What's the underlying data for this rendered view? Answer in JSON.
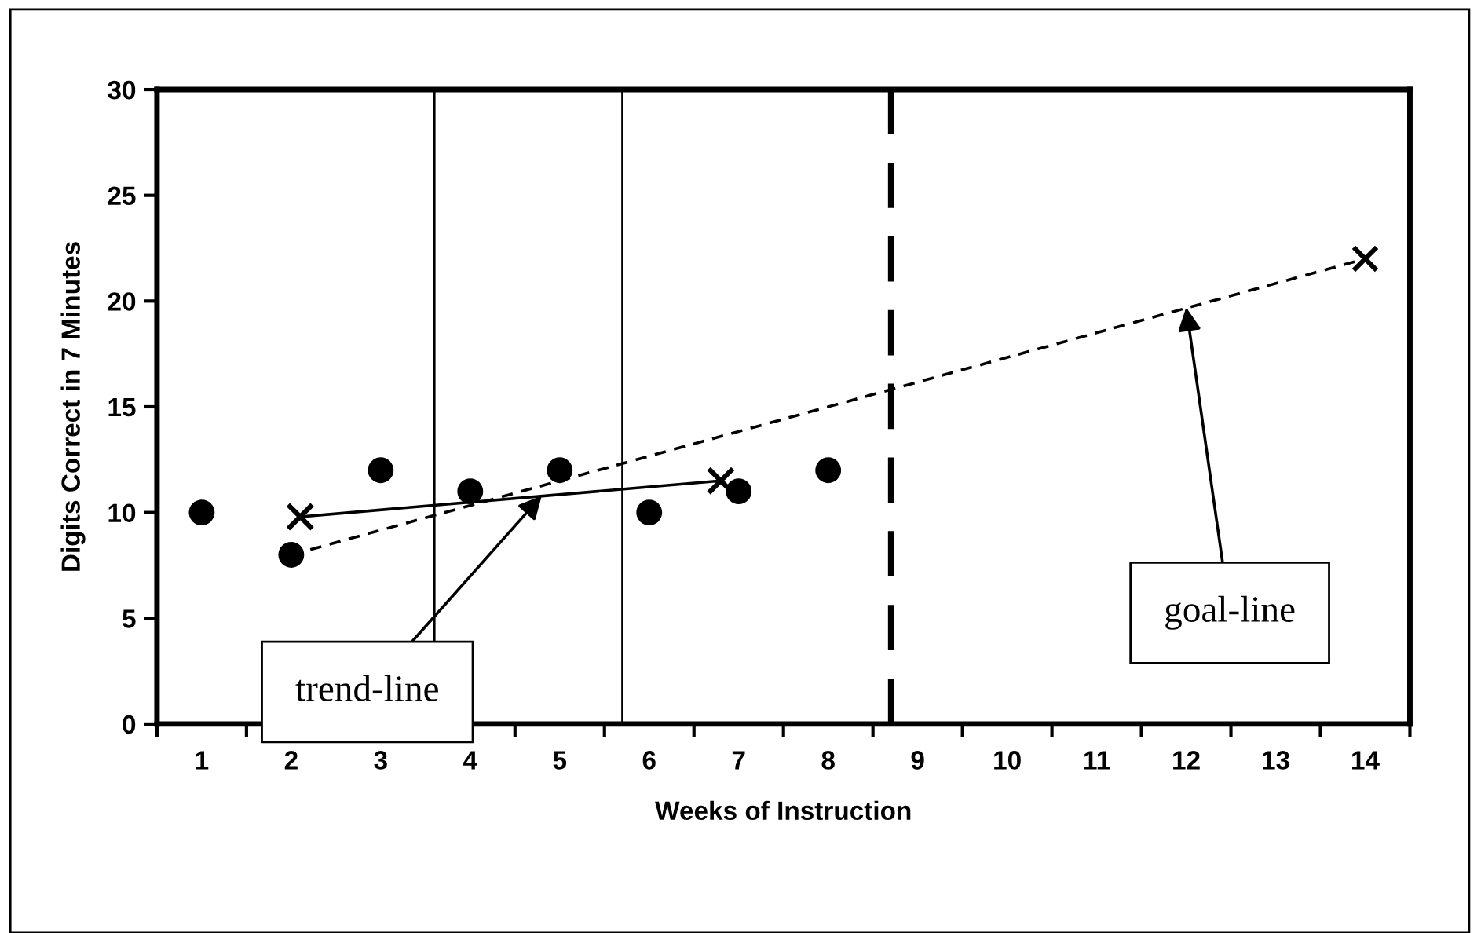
{
  "chart_data": {
    "type": "scatter",
    "xlabel": "Weeks of Instruction",
    "ylabel": "Digits Correct in 7 Minutes",
    "x": [
      1,
      2,
      3,
      4,
      5,
      6,
      7,
      8
    ],
    "xlim": [
      0.5,
      14.5
    ],
    "xticks": [
      1,
      2,
      3,
      4,
      5,
      6,
      7,
      8,
      9,
      10,
      11,
      12,
      13,
      14
    ],
    "ylim": [
      0,
      30
    ],
    "yticks": [
      0,
      5,
      10,
      15,
      20,
      25,
      30
    ],
    "grid": false,
    "legend": false,
    "series": [
      {
        "color": "#000000",
        "marker": "circle",
        "values": [
          10,
          8,
          12,
          11,
          12,
          10,
          11,
          12
        ]
      },
      {
        "type": "line",
        "color": "#000000",
        "line_style": "solid",
        "marker": "cross",
        "x": [
          2.1,
          6.8
        ],
        "values": [
          9.8,
          11.5
        ]
      },
      {
        "type": "line",
        "color": "#000000",
        "line_style": "dashed",
        "marker": "none",
        "x": [
          2,
          14
        ],
        "values": [
          8,
          22
        ]
      },
      {
        "type": "scatter",
        "color": "#000000",
        "marker": "cross",
        "x": [
          14
        ],
        "values": [
          22
        ]
      }
    ],
    "ref_lines": [
      {
        "axis": "x",
        "value": 3.6,
        "color": "#000000",
        "line_style": "solid"
      },
      {
        "axis": "x",
        "value": 5.7,
        "color": "#000000",
        "line_style": "solid"
      },
      {
        "axis": "x",
        "value": 8.7,
        "color": "#000000",
        "line_style": "dashed"
      }
    ],
    "annotations": [
      {
        "text": "trend-line",
        "x": 4.8,
        "y": 10.8
      },
      {
        "text": "goal-line",
        "x": 12,
        "y": 19.7
      }
    ]
  }
}
